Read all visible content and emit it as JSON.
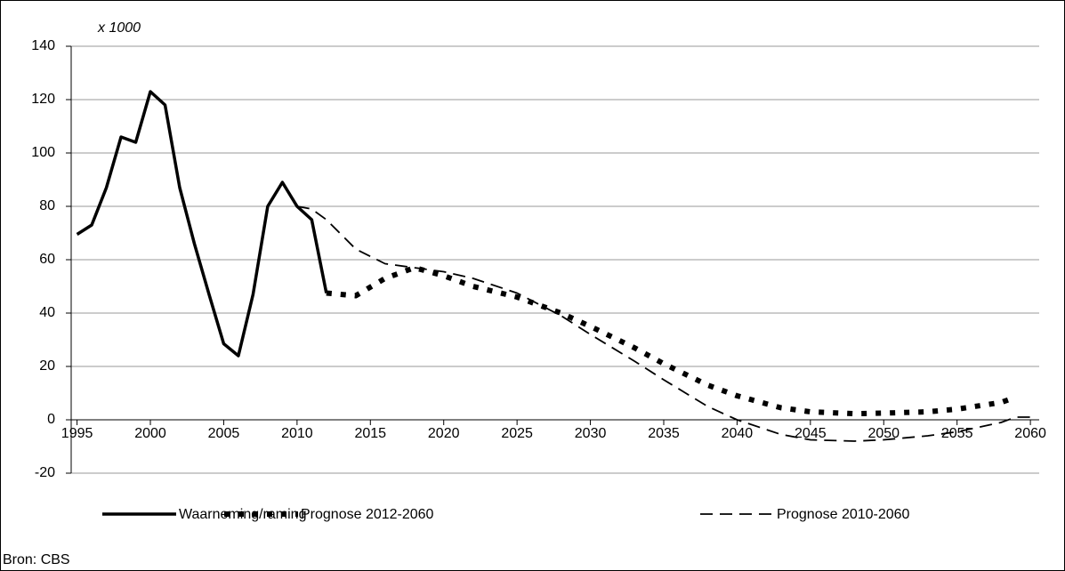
{
  "chart_data": {
    "type": "line",
    "unit_label": "x 1000",
    "source": "Bron: CBS",
    "xlim": [
      1994.6,
      2060.6
    ],
    "xticks": [
      1995,
      2000,
      2005,
      2010,
      2015,
      2020,
      2025,
      2030,
      2035,
      2040,
      2045,
      2050,
      2055,
      2060
    ],
    "ylim": [
      -20,
      140
    ],
    "yticks": [
      -20,
      0,
      20,
      40,
      60,
      80,
      100,
      120,
      140
    ],
    "grid": true,
    "series": [
      {
        "name": "Waarneming/raming",
        "color": "#000000",
        "style": "solid",
        "x": [
          1995,
          1996,
          1997,
          1998,
          1999,
          2000,
          2001,
          2002,
          2003,
          2004,
          2005,
          2006,
          2007,
          2008,
          2009,
          2010,
          2011,
          2012
        ],
        "values": [
          69.5,
          73,
          87,
          106,
          104,
          123,
          118,
          87,
          66,
          47,
          28.5,
          24,
          47,
          80,
          89,
          80,
          75,
          47.5
        ]
      },
      {
        "name": "Prognose 2012-2060",
        "color": "#000000",
        "style": "dotted",
        "x": [
          2012,
          2013,
          2014,
          2016,
          2018,
          2020,
          2022,
          2025,
          2028,
          2030,
          2033,
          2035,
          2038,
          2040,
          2043,
          2045,
          2048,
          2050,
          2053,
          2055,
          2058,
          2059
        ],
        "values": [
          47.5,
          47,
          46.5,
          53,
          57,
          54,
          50,
          46,
          40,
          35,
          27,
          21,
          13,
          9,
          4.5,
          3,
          2.3,
          2.5,
          3,
          4,
          6.5,
          8.5
        ]
      },
      {
        "name": "Prognose 2010-2060",
        "color": "#000000",
        "style": "dashed",
        "x": [
          2010,
          2011,
          2012,
          2014,
          2016,
          2018,
          2020,
          2022,
          2025,
          2028,
          2030,
          2033,
          2035,
          2038,
          2040,
          2043,
          2045,
          2048,
          2050,
          2053,
          2055,
          2058,
          2059,
          2060
        ],
        "values": [
          80,
          79,
          75,
          64,
          58.5,
          57,
          55.5,
          53,
          47.5,
          39,
          32,
          22,
          15,
          5,
          0,
          -5.5,
          -7.5,
          -8,
          -7.5,
          -6,
          -4.5,
          -1,
          1,
          1
        ]
      }
    ]
  }
}
